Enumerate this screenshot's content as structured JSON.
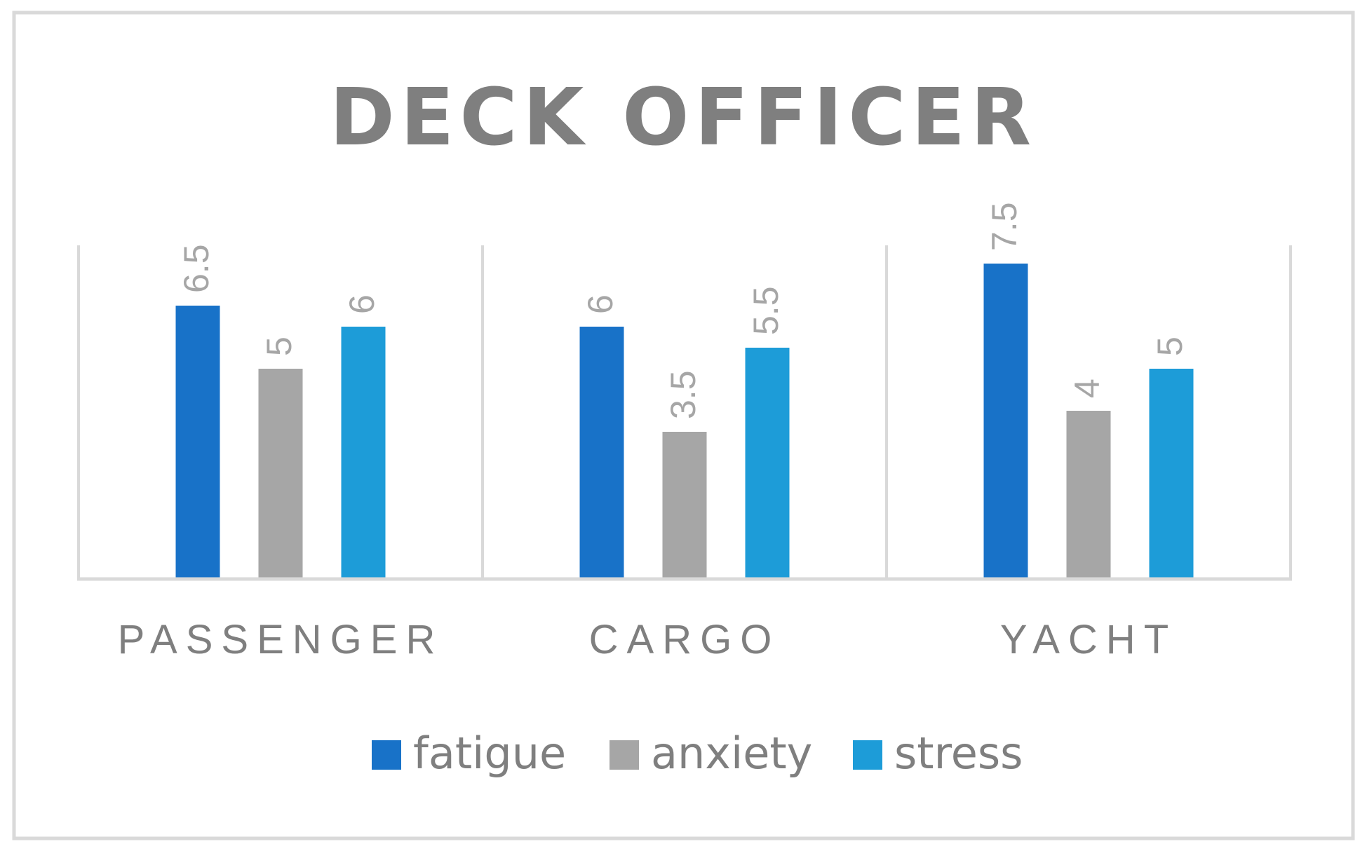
{
  "chart_data": {
    "type": "bar",
    "title": "DECK OFFICER",
    "categories": [
      "PASSENGER",
      "CARGO",
      "YACHT"
    ],
    "series": [
      {
        "name": "fatigue",
        "color": "#1872c8",
        "values": [
          6.5,
          6,
          7.5
        ]
      },
      {
        "name": "anxiety",
        "color": "#a6a6a6",
        "values": [
          5,
          3.5,
          4
        ]
      },
      {
        "name": "stress",
        "color": "#1d9cd8",
        "values": [
          6,
          5.5,
          5
        ]
      }
    ],
    "data_labels": {
      "fatigue": [
        "6.5",
        "6",
        "7.5"
      ],
      "anxiety": [
        "5",
        "3.5",
        "4"
      ],
      "stress": [
        "6",
        "5.5",
        "5"
      ]
    },
    "ylim": [
      0,
      8
    ],
    "grid": "vertical category separators",
    "legend": "bottom",
    "colors": {
      "axis": "#d9d9d9",
      "text": "#7f7f7f",
      "frame": "#d9d9d9"
    }
  }
}
